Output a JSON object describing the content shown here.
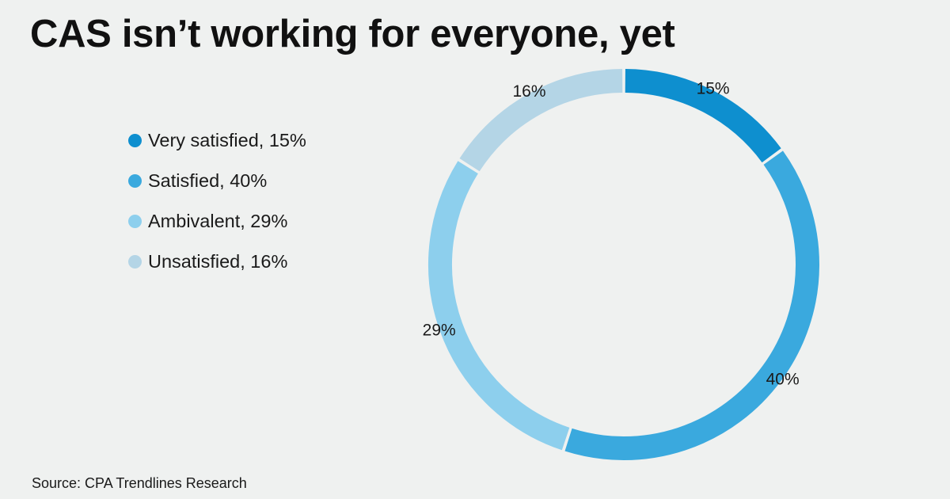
{
  "title": "CAS isn’t working for everyone, yet",
  "source": "Source: CPA Trendlines Research",
  "chart_data": {
    "type": "pie",
    "variant": "donut",
    "title": "CAS isn’t working for everyone, yet",
    "legend_position": "left",
    "slices": [
      {
        "label": "Very satisfied",
        "value": 15,
        "data_label": "15%",
        "legend": "Very satisfied, 15%",
        "color": "#0e8fcf"
      },
      {
        "label": "Satisfied",
        "value": 40,
        "data_label": "40%",
        "legend": "Satisfied, 40%",
        "color": "#3aa9de"
      },
      {
        "label": "Ambivalent",
        "value": 29,
        "data_label": "29%",
        "legend": "Ambivalent, 29%",
        "color": "#8dcfed"
      },
      {
        "label": "Unsatisfied",
        "value": 16,
        "data_label": "16%",
        "legend": "Unsatisfied, 16%",
        "color": "#b4d5e6"
      }
    ]
  }
}
